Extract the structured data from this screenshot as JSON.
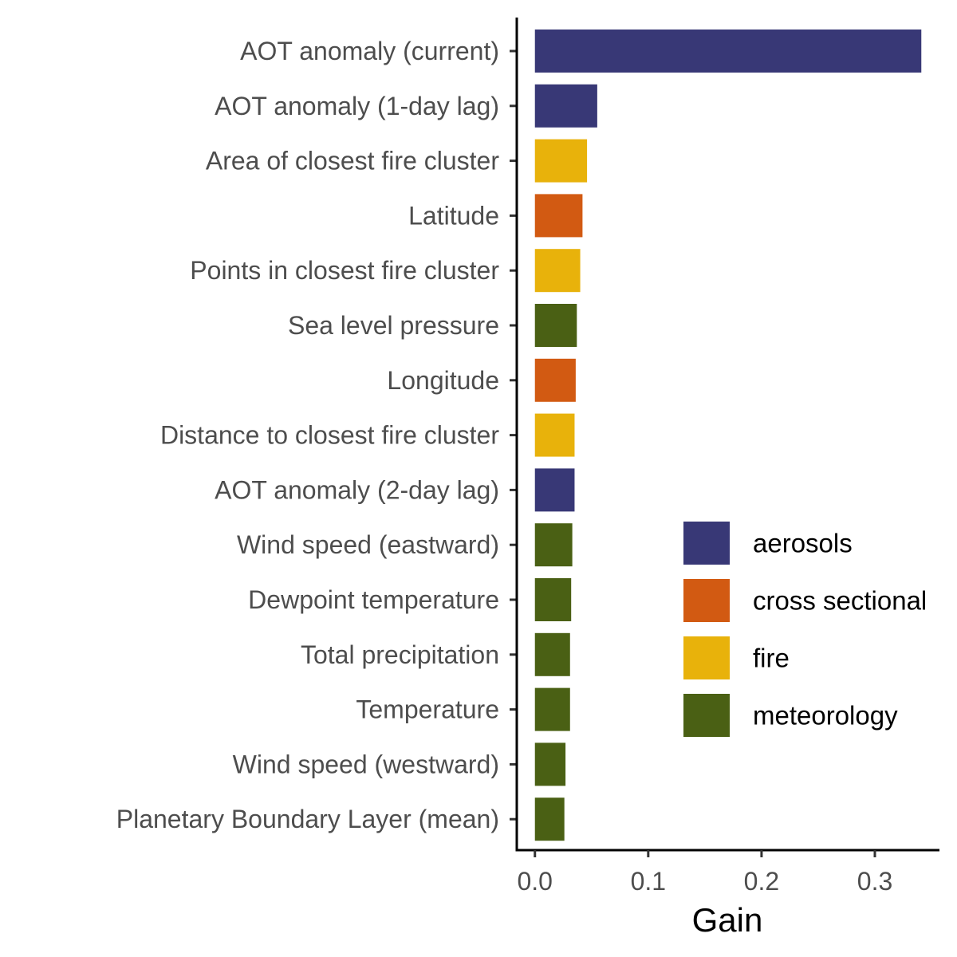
{
  "chart_data": {
    "type": "bar",
    "orientation": "horizontal",
    "xlabel": "Gain",
    "ylabel": "",
    "xlim": [
      -0.016,
      0.357
    ],
    "xticks": [
      0.0,
      0.1,
      0.2,
      0.3
    ],
    "xtick_labels": [
      "0.0",
      "0.1",
      "0.2",
      "0.3"
    ],
    "grid": false,
    "legend_position": "right",
    "categories": [
      "AOT anomaly (current)",
      "AOT anomaly (1-day lag)",
      "Area of closest fire cluster",
      "Latitude",
      "Points in closest fire cluster",
      "Sea level pressure",
      "Longitude",
      "Distance to closest fire cluster",
      "AOT anomaly (2-day lag)",
      "Wind speed (eastward)",
      "Dewpoint temperature",
      "Total precipitation",
      "Temperature",
      "Wind speed (westward)",
      "Planetary Boundary Layer (mean)"
    ],
    "values": [
      0.341,
      0.055,
      0.046,
      0.042,
      0.04,
      0.037,
      0.036,
      0.035,
      0.035,
      0.033,
      0.032,
      0.031,
      0.031,
      0.027,
      0.026
    ],
    "groups": [
      "aerosols",
      "aerosols",
      "fire",
      "cross sectional",
      "fire",
      "meteorology",
      "cross sectional",
      "fire",
      "aerosols",
      "meteorology",
      "meteorology",
      "meteorology",
      "meteorology",
      "meteorology",
      "meteorology"
    ],
    "legend": [
      {
        "name": "aerosols",
        "color": "#383876"
      },
      {
        "name": "cross sectional",
        "color": "#D25A12"
      },
      {
        "name": "fire",
        "color": "#E8B20B"
      },
      {
        "name": "meteorology",
        "color": "#4A6014"
      }
    ]
  }
}
